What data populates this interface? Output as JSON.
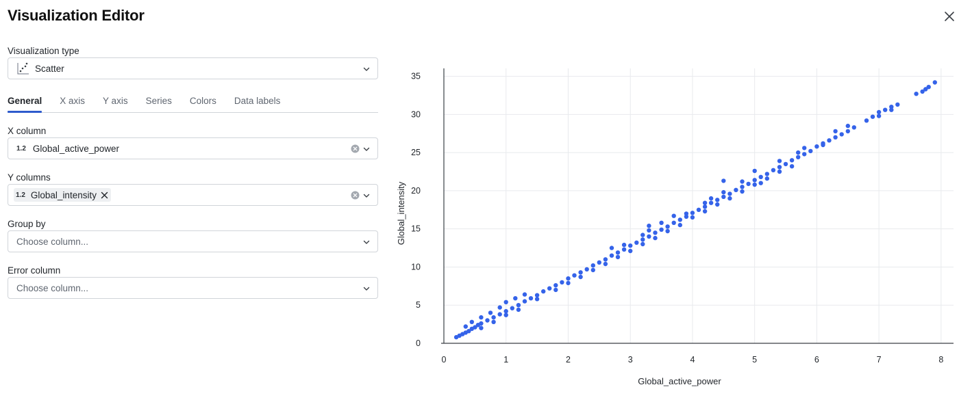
{
  "dialog": {
    "title": "Visualization Editor"
  },
  "viz_type": {
    "label": "Visualization type",
    "value": "Scatter"
  },
  "tabs": [
    {
      "label": "General",
      "active": true
    },
    {
      "label": "X axis",
      "active": false
    },
    {
      "label": "Y axis",
      "active": false
    },
    {
      "label": "Series",
      "active": false
    },
    {
      "label": "Colors",
      "active": false
    },
    {
      "label": "Data labels",
      "active": false
    }
  ],
  "x_column": {
    "label": "X column",
    "type_badge": "1.2",
    "value": "Global_active_power"
  },
  "y_columns": {
    "label": "Y columns",
    "type_badge": "1.2",
    "value": "Global_intensity"
  },
  "group_by": {
    "label": "Group by",
    "placeholder": "Choose column..."
  },
  "error_column": {
    "label": "Error column",
    "placeholder": "Choose column..."
  },
  "colors": {
    "accent": "#2e5bcc",
    "point": "#3563e9",
    "axis": "#3a3f45",
    "grid": "#e8eaed"
  },
  "chart_data": {
    "type": "scatter",
    "xlabel": "Global_active_power",
    "ylabel": "Global_intensity",
    "xlim": [
      0,
      8.2
    ],
    "ylim": [
      0,
      35.5
    ],
    "xticks": [
      0,
      1,
      2,
      3,
      4,
      5,
      6,
      7,
      8
    ],
    "yticks": [
      0,
      5,
      10,
      15,
      20,
      25,
      30,
      35
    ],
    "grid": true,
    "points": [
      [
        0.2,
        0.8
      ],
      [
        0.25,
        1.0
      ],
      [
        0.3,
        1.2
      ],
      [
        0.35,
        1.4
      ],
      [
        0.4,
        1.6
      ],
      [
        0.45,
        1.9
      ],
      [
        0.5,
        2.1
      ],
      [
        0.55,
        2.4
      ],
      [
        0.6,
        2.6
      ],
      [
        0.7,
        3.0
      ],
      [
        0.8,
        3.4
      ],
      [
        0.9,
        3.8
      ],
      [
        1.0,
        4.2
      ],
      [
        1.1,
        4.6
      ],
      [
        1.2,
        5.0
      ],
      [
        1.3,
        5.5
      ],
      [
        1.4,
        5.9
      ],
      [
        1.5,
        6.3
      ],
      [
        1.6,
        6.8
      ],
      [
        1.7,
        7.2
      ],
      [
        1.8,
        7.6
      ],
      [
        1.9,
        8.0
      ],
      [
        2.0,
        8.5
      ],
      [
        2.1,
        8.9
      ],
      [
        2.2,
        9.3
      ],
      [
        2.3,
        9.7
      ],
      [
        2.4,
        10.2
      ],
      [
        2.5,
        10.6
      ],
      [
        2.6,
        11.0
      ],
      [
        2.7,
        11.5
      ],
      [
        2.8,
        11.9
      ],
      [
        2.9,
        12.3
      ],
      [
        3.0,
        12.8
      ],
      [
        3.1,
        13.2
      ],
      [
        3.2,
        13.6
      ],
      [
        3.3,
        14.0
      ],
      [
        3.4,
        14.5
      ],
      [
        3.5,
        14.9
      ],
      [
        3.6,
        15.3
      ],
      [
        3.7,
        15.8
      ],
      [
        3.8,
        16.2
      ],
      [
        3.9,
        16.6
      ],
      [
        4.0,
        17.1
      ],
      [
        4.1,
        17.5
      ],
      [
        4.2,
        17.9
      ],
      [
        4.3,
        18.4
      ],
      [
        4.4,
        18.8
      ],
      [
        4.5,
        19.2
      ],
      [
        4.6,
        19.6
      ],
      [
        4.7,
        20.1
      ],
      [
        4.8,
        20.5
      ],
      [
        4.9,
        20.9
      ],
      [
        5.0,
        21.4
      ],
      [
        5.1,
        21.8
      ],
      [
        5.2,
        22.2
      ],
      [
        5.3,
        22.7
      ],
      [
        5.4,
        23.1
      ],
      [
        5.5,
        23.5
      ],
      [
        5.6,
        24.0
      ],
      [
        5.7,
        24.4
      ],
      [
        5.8,
        24.8
      ],
      [
        5.9,
        25.2
      ],
      [
        6.0,
        25.8
      ],
      [
        6.1,
        26.2
      ],
      [
        6.2,
        26.6
      ],
      [
        6.3,
        27.0
      ],
      [
        6.4,
        27.4
      ],
      [
        6.5,
        27.8
      ],
      [
        6.6,
        28.3
      ],
      [
        6.8,
        29.2
      ],
      [
        6.9,
        29.7
      ],
      [
        7.0,
        30.3
      ],
      [
        7.1,
        30.6
      ],
      [
        7.2,
        31.0
      ],
      [
        7.3,
        31.3
      ],
      [
        7.6,
        32.7
      ],
      [
        7.7,
        33.0
      ],
      [
        7.75,
        33.3
      ],
      [
        7.8,
        33.6
      ],
      [
        7.9,
        34.2
      ],
      [
        0.35,
        2.2
      ],
      [
        0.45,
        2.8
      ],
      [
        0.6,
        3.4
      ],
      [
        0.75,
        4.0
      ],
      [
        0.9,
        4.7
      ],
      [
        1.0,
        5.4
      ],
      [
        1.15,
        5.9
      ],
      [
        1.3,
        6.4
      ],
      [
        0.6,
        2.0
      ],
      [
        0.8,
        2.8
      ],
      [
        1.0,
        3.7
      ],
      [
        1.2,
        4.4
      ],
      [
        1.5,
        5.8
      ],
      [
        1.8,
        7.0
      ],
      [
        2.0,
        7.9
      ],
      [
        2.2,
        8.7
      ],
      [
        2.4,
        9.6
      ],
      [
        2.6,
        10.4
      ],
      [
        2.8,
        11.3
      ],
      [
        3.0,
        12.1
      ],
      [
        3.2,
        13.0
      ],
      [
        3.4,
        13.8
      ],
      [
        3.6,
        14.7
      ],
      [
        3.8,
        15.5
      ],
      [
        4.0,
        16.5
      ],
      [
        4.2,
        17.3
      ],
      [
        4.4,
        18.2
      ],
      [
        4.6,
        19.0
      ],
      [
        4.8,
        19.9
      ],
      [
        5.0,
        20.8
      ],
      [
        5.2,
        21.6
      ],
      [
        5.4,
        22.5
      ],
      [
        2.7,
        12.5
      ],
      [
        3.2,
        14.2
      ],
      [
        3.3,
        15.4
      ],
      [
        3.7,
        16.7
      ],
      [
        4.3,
        19.0
      ],
      [
        4.5,
        19.8
      ],
      [
        5.1,
        21.0
      ],
      [
        5.6,
        23.2
      ],
      [
        4.5,
        21.3
      ],
      [
        5.0,
        22.6
      ],
      [
        5.4,
        23.9
      ],
      [
        3.5,
        15.8
      ],
      [
        3.3,
        14.8
      ],
      [
        2.9,
        12.9
      ],
      [
        5.8,
        25.6
      ],
      [
        6.1,
        26.0
      ],
      [
        6.5,
        28.5
      ],
      [
        7.0,
        29.8
      ],
      [
        7.2,
        30.6
      ],
      [
        6.3,
        27.8
      ],
      [
        5.7,
        25.0
      ],
      [
        4.8,
        21.2
      ],
      [
        4.2,
        18.4
      ],
      [
        3.9,
        17.0
      ]
    ]
  }
}
